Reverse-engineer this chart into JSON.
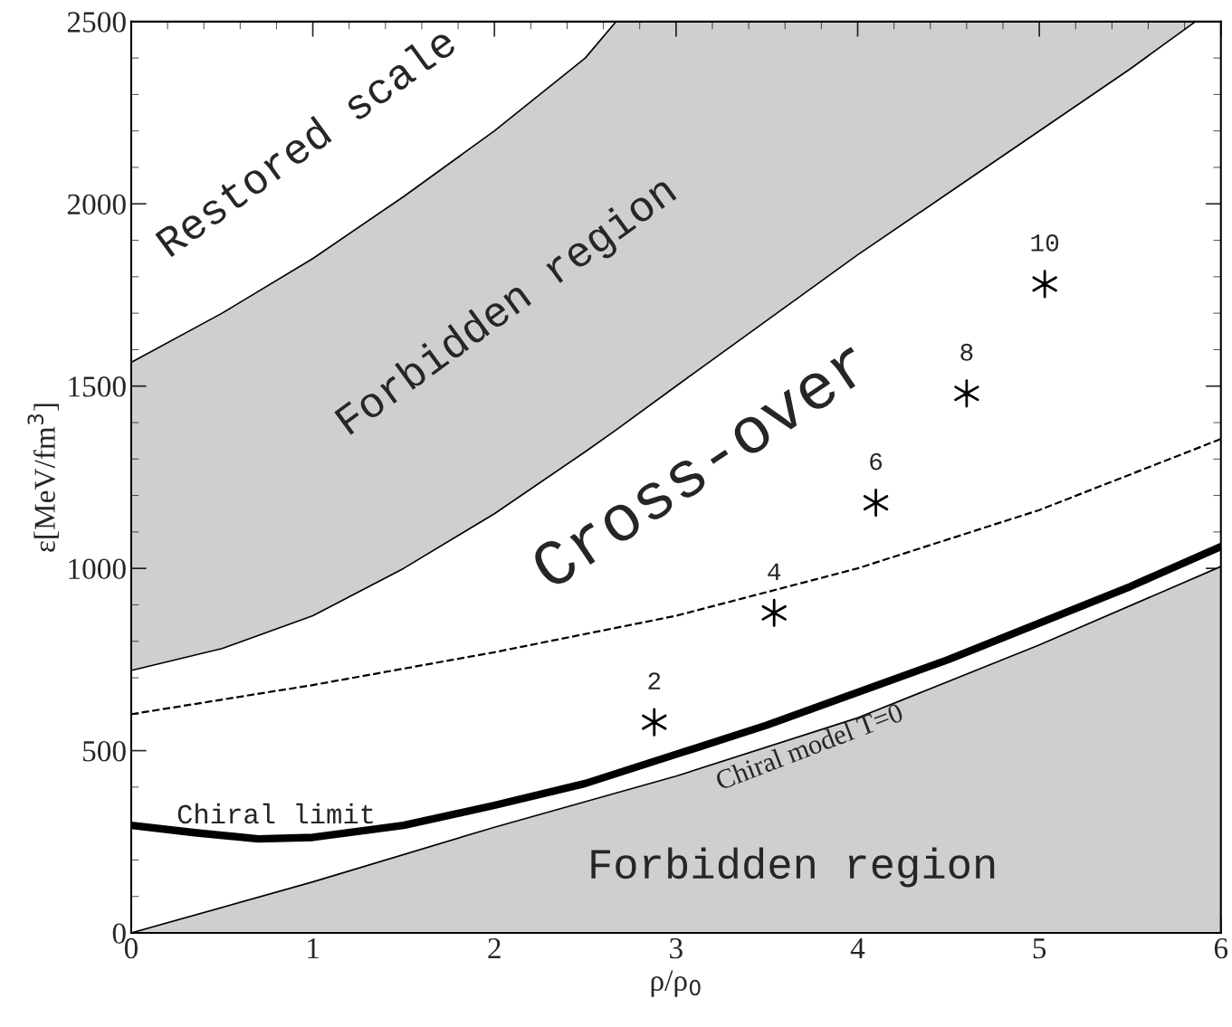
{
  "chart_data": {
    "type": "line",
    "xlabel": "ρ/ρ$_{0}$",
    "ylabel": "ε[MeV/fm$^{3}$]",
    "xlim": [
      0,
      6
    ],
    "ylim": [
      0,
      2500
    ],
    "xticks": [
      0,
      1,
      2,
      3,
      4,
      5,
      6
    ],
    "yticks": [
      0,
      500,
      1000,
      1500,
      2000,
      2500
    ],
    "grid": false,
    "series": [
      {
        "color": "#000000",
        "line_style": "solid",
        "x": [
          0,
          0.5,
          1,
          1.5,
          2,
          2.5,
          2.67,
          3,
          3.5,
          4,
          4.5,
          5,
          5.5,
          5.86
        ],
        "values": [
          720,
          780,
          870,
          1000,
          1150,
          1320,
          1380,
          1500,
          1680,
          1860,
          2030,
          2200,
          2370,
          2500
        ],
        "lower": [
          720,
          780,
          870,
          1000,
          1150,
          1320,
          1380,
          1500,
          1680,
          1860,
          2030,
          2200,
          2370,
          2500
        ],
        "upper": [
          1565,
          1700,
          1850,
          2020,
          2200,
          2400,
          2500,
          2500,
          2500,
          2500,
          2500,
          2500,
          2500,
          2500
        ]
      },
      {
        "color": "#000000",
        "line_style": "solid",
        "x": [
          0,
          0.5,
          1,
          1.5,
          2,
          2.5,
          2.67
        ],
        "values": [
          1565,
          1700,
          1850,
          2020,
          2200,
          2400,
          2500
        ]
      },
      {
        "type": "area",
        "color": "#cfcfcf",
        "x": [
          0,
          1,
          2,
          3,
          4,
          5,
          6
        ],
        "values": [
          0,
          140,
          290,
          430,
          590,
          790,
          1005
        ]
      },
      {
        "color": "#000000",
        "line_style": "dashed",
        "x": [
          0,
          1,
          2,
          3,
          4,
          5,
          6
        ],
        "values": [
          600,
          680,
          770,
          870,
          1000,
          1160,
          1355
        ]
      },
      {
        "color": "#000000",
        "line_style": "solid",
        "x": [
          0,
          0.35,
          0.7,
          1,
          1.5,
          2,
          2.5,
          3,
          3.5,
          4,
          4.5,
          5,
          5.5,
          6
        ],
        "values": [
          295,
          275,
          258,
          262,
          295,
          350,
          410,
          490,
          570,
          660,
          750,
          850,
          950,
          1060
        ]
      },
      {
        "type": "scatter",
        "color": "#000000",
        "marker": "cross",
        "x": [
          2.88,
          3.54,
          4.1,
          4.6,
          5.03
        ],
        "values": [
          578,
          878,
          1180,
          1480,
          1780
        ]
      }
    ],
    "annotations": [
      "Restored scale",
      "Forbidden region",
      "Cross-over",
      "Chiral limit",
      "Forbidden region",
      "Chiral model T=0",
      {
        "text": "2",
        "x": 2.88,
        "y": 578
      },
      {
        "text": "4",
        "x": 3.54,
        "y": 878
      },
      {
        "text": "6",
        "x": 4.1,
        "y": 1180
      },
      {
        "text": "8",
        "x": 4.6,
        "y": 1480
      },
      {
        "text": "10",
        "x": 5.03,
        "y": 1780
      }
    ]
  }
}
